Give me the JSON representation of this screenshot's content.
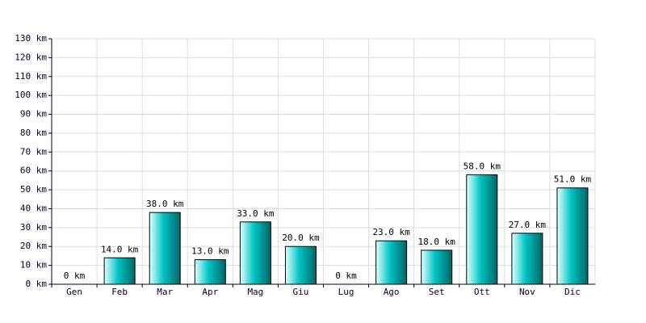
{
  "chart_data": {
    "type": "bar",
    "categories": [
      "Gen",
      "Feb",
      "Mar",
      "Apr",
      "Mag",
      "Giu",
      "Lug",
      "Ago",
      "Set",
      "Ott",
      "Nov",
      "Dic"
    ],
    "values": [
      0,
      14,
      38,
      13,
      33,
      20,
      0,
      23,
      18,
      58,
      27,
      51
    ],
    "value_labels": [
      "0 km",
      "14.0 km",
      "38.0 km",
      "13.0 km",
      "33.0 km",
      "20.0 km",
      "0 km",
      "23.0 km",
      "18.0 km",
      "58.0 km",
      "27.0 km",
      "51.0 km"
    ],
    "color": "#00c4c4",
    "ylim": [
      0,
      130
    ],
    "yticks": [
      {
        "value": 0,
        "label": "0 km"
      },
      {
        "value": 10,
        "label": "10 km"
      },
      {
        "value": 20,
        "label": "20 km"
      },
      {
        "value": 30,
        "label": "30 km"
      },
      {
        "value": 40,
        "label": "40 km"
      },
      {
        "value": 50,
        "label": "50 km"
      },
      {
        "value": 60,
        "label": "60 km"
      },
      {
        "value": 70,
        "label": "70 km"
      },
      {
        "value": 80,
        "label": "80 km"
      },
      {
        "value": 90,
        "label": "90 km"
      },
      {
        "value": 100,
        "label": "100 km"
      },
      {
        "value": 110,
        "label": "110 km"
      },
      {
        "value": 120,
        "label": "120 km"
      },
      {
        "value": 130,
        "label": "130 km"
      }
    ],
    "grid": true
  }
}
